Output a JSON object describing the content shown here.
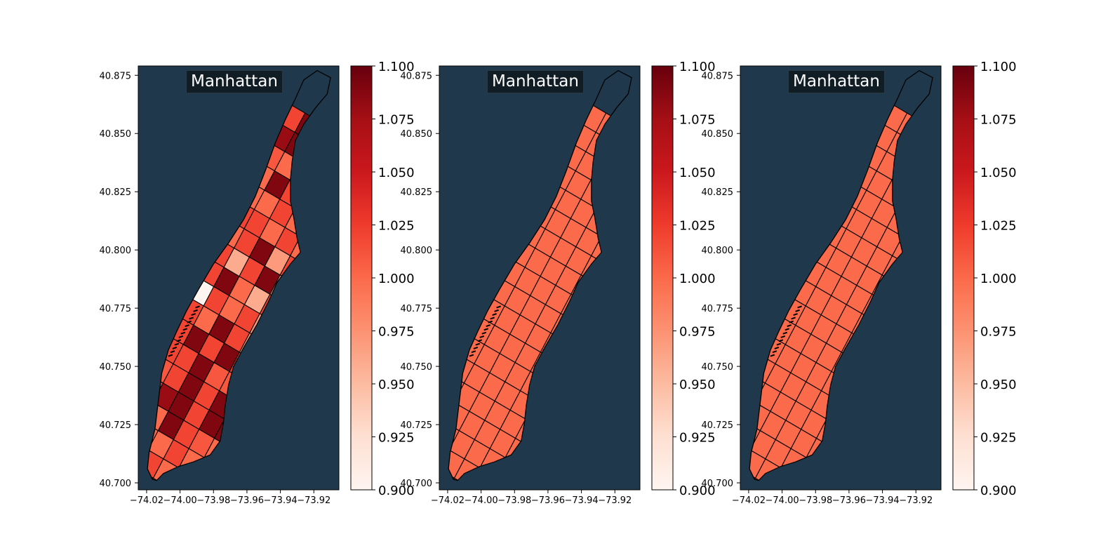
{
  "colors": {
    "map_background": "#20384b",
    "border": "#000000",
    "label_box": "#111d25",
    "label_text": "#ffffff",
    "cmap_low": "#fff5f0",
    "cmap_high": "#67000d"
  },
  "chart_data": [
    {
      "type": "choropleth",
      "title": "Manhattan",
      "xlim": [
        -74.025,
        -73.905
      ],
      "ylim": [
        40.697,
        40.879
      ],
      "xticks": [
        "−74.02",
        "−74.00",
        "−73.98",
        "−73.96",
        "−73.94",
        "−73.92"
      ],
      "yticks": [
        "40.700",
        "40.725",
        "40.750",
        "40.775",
        "40.800",
        "40.825",
        "40.850",
        "40.875"
      ],
      "colorbar": {
        "min": 0.9,
        "max": 1.1,
        "ticks": [
          "0.900",
          "0.925",
          "0.950",
          "0.975",
          "1.000",
          "1.025",
          "1.050",
          "1.075",
          "1.100"
        ]
      },
      "zone_values": [
        1.02,
        1.0,
        1.02,
        1.0,
        1.0,
        1.0,
        1.02,
        1.0,
        1.0,
        1.09,
        1.02,
        1.01,
        1.0,
        1.02,
        1.08,
        1.09,
        1.02,
        1.09,
        1.09,
        1.01,
        1.02,
        1.09,
        1.02,
        1.09,
        1.02,
        1.02,
        1.09,
        1.01,
        1.01,
        1.02,
        1.09,
        1.02,
        1.09,
        1.02,
        1.02,
        1.0,
        1.09,
        1.02,
        0.97,
        0.9,
        1.02,
        1.0,
        1.02,
        0.97,
        1.02,
        1.09,
        1.0,
        0.96,
        1.02,
        1.02,
        0.96,
        1.02,
        1.09,
        0.96,
        1.0,
        1.02,
        1.09,
        0.97,
        1.02,
        1.02
      ]
    },
    {
      "type": "choropleth",
      "title": "Manhattan",
      "xlim": [
        -74.025,
        -73.905
      ],
      "ylim": [
        40.697,
        40.879
      ],
      "xticks": [
        "−74.02",
        "−74.00",
        "−73.98",
        "−73.96",
        "−73.94",
        "−73.92"
      ],
      "yticks": [
        "40.700",
        "40.725",
        "40.750",
        "40.775",
        "40.800",
        "40.825",
        "40.850",
        "40.875"
      ],
      "colorbar": {
        "min": 0.9,
        "max": 1.1,
        "ticks": [
          "0.900",
          "0.925",
          "0.950",
          "0.975",
          "1.000",
          "1.025",
          "1.050",
          "1.075",
          "1.100"
        ]
      },
      "zone_value_all": 1.0
    },
    {
      "type": "choropleth",
      "title": "Manhattan",
      "xlim": [
        -74.025,
        -73.905
      ],
      "ylim": [
        40.697,
        40.879
      ],
      "xticks": [
        "−74.02",
        "−74.00",
        "−73.98",
        "−73.96",
        "−73.94",
        "−73.92"
      ],
      "yticks": [
        "40.700",
        "40.725",
        "40.750",
        "40.775",
        "40.800",
        "40.825",
        "40.850",
        "40.875"
      ],
      "colorbar": {
        "min": 0.9,
        "max": 1.1,
        "ticks": [
          "0.900",
          "0.925",
          "0.950",
          "0.975",
          "1.000",
          "1.025",
          "1.050",
          "1.075",
          "1.100"
        ]
      },
      "zone_value_all": 1.0
    }
  ]
}
